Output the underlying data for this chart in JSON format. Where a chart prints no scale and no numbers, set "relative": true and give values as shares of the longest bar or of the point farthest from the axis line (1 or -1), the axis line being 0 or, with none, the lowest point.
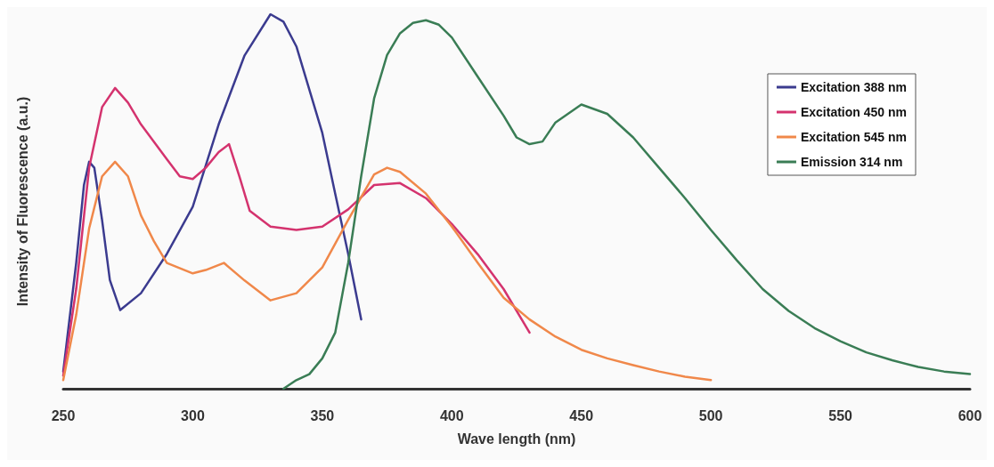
{
  "chart_data": {
    "type": "line",
    "xlabel": "Wave length (nm)",
    "ylabel": "Intensity of Fluorescence (a.u.)",
    "relative": true,
    "xlim": [
      250,
      600
    ],
    "xticks": [
      250,
      300,
      350,
      400,
      450,
      500,
      550,
      600
    ],
    "grid": false,
    "legend": "top right",
    "marker": "none",
    "line_style": "solid",
    "series": [
      {
        "name": "Excitation 388 nm",
        "color": "#3b3b8f",
        "x": [
          250,
          255,
          258,
          260,
          262,
          265,
          268,
          272,
          280,
          290,
          300,
          310,
          320,
          330,
          335,
          340,
          350,
          355,
          360,
          365
        ],
        "values": [
          0.046,
          0.336,
          0.544,
          0.606,
          0.59,
          0.45,
          0.29,
          0.21,
          0.255,
          0.36,
          0.486,
          0.706,
          0.89,
          1,
          0.98,
          0.914,
          0.683,
          0.52,
          0.36,
          0.185
        ]
      },
      {
        "name": "Excitation 450 nm",
        "color": "#d4336e",
        "x": [
          250,
          255,
          260,
          265,
          270,
          275,
          280,
          290,
          295,
          300,
          305,
          310,
          314,
          318,
          322,
          330,
          340,
          350,
          360,
          370,
          380,
          390,
          400,
          410,
          420,
          430
        ],
        "values": [
          0.035,
          0.266,
          0.59,
          0.752,
          0.803,
          0.764,
          0.706,
          0.613,
          0.567,
          0.56,
          0.59,
          0.632,
          0.653,
          0.567,
          0.475,
          0.433,
          0.424,
          0.433,
          0.479,
          0.544,
          0.549,
          0.509,
          0.44,
          0.359,
          0.266,
          0.15
        ]
      },
      {
        "name": "Excitation 545 nm",
        "color": "#f0884a",
        "x": [
          250,
          255,
          260,
          265,
          270,
          275,
          280,
          285,
          290,
          300,
          305,
          312,
          320,
          330,
          340,
          350,
          360,
          370,
          375,
          380,
          390,
          400,
          410,
          420,
          430,
          440,
          450,
          460,
          470,
          480,
          490,
          500
        ],
        "values": [
          0.023,
          0.197,
          0.428,
          0.567,
          0.606,
          0.567,
          0.463,
          0.394,
          0.336,
          0.308,
          0.317,
          0.336,
          0.289,
          0.236,
          0.255,
          0.324,
          0.451,
          0.572,
          0.59,
          0.579,
          0.521,
          0.433,
          0.336,
          0.243,
          0.185,
          0.139,
          0.104,
          0.081,
          0.063,
          0.046,
          0.032,
          0.023
        ]
      },
      {
        "name": "Emission 314 nm",
        "color": "#3a7d55",
        "x": [
          335,
          340,
          345,
          350,
          355,
          360,
          365,
          370,
          375,
          380,
          385,
          390,
          395,
          400,
          410,
          420,
          425,
          430,
          435,
          440,
          450,
          460,
          470,
          480,
          490,
          500,
          510,
          520,
          530,
          540,
          550,
          560,
          570,
          580,
          590,
          600
        ],
        "values": [
          0,
          0.023,
          0.039,
          0.081,
          0.15,
          0.336,
          0.567,
          0.775,
          0.891,
          0.949,
          0.977,
          0.984,
          0.972,
          0.938,
          0.833,
          0.729,
          0.671,
          0.653,
          0.66,
          0.711,
          0.759,
          0.734,
          0.671,
          0.59,
          0.509,
          0.424,
          0.343,
          0.266,
          0.208,
          0.162,
          0.127,
          0.097,
          0.076,
          0.058,
          0.046,
          0.039
        ]
      }
    ]
  }
}
